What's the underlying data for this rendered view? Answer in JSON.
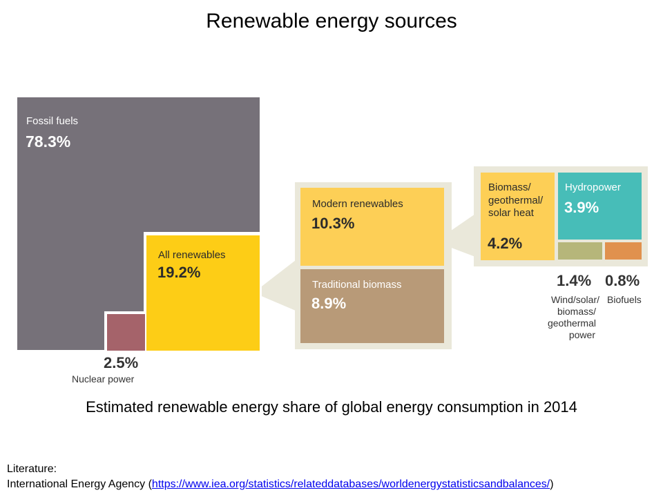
{
  "title": "Renewable energy sources",
  "caption": "Estimated renewable energy share of global energy consumption in 2014",
  "literature": {
    "label": "Literature:",
    "source": "International Energy Agency",
    "open": "(",
    "url": "https://www.iea.org/statistics/relateddatabases/worldenergystatisticsandbalances/",
    "close": ")"
  },
  "colors": {
    "fossil": "#767179",
    "nuclear": "#a5636a",
    "renewables": "#fdcd16",
    "modern": "#fdcf56",
    "traditional": "#b89a78",
    "panel": "#eae8da",
    "hydro": "#47bdb8",
    "wind": "#b6b67a",
    "biofuels": "#e0914e"
  },
  "chart_data": {
    "type": "treemap",
    "unit": "%",
    "items": [
      {
        "key": "fossil",
        "label": "Fossil fuels",
        "value": 78.3,
        "display": "78.3%"
      },
      {
        "key": "nuclear",
        "label": "Nuclear power",
        "value": 2.5,
        "display": "2.5%"
      },
      {
        "key": "renewables",
        "label": "All renewables",
        "value": 19.2,
        "display": "19.2%",
        "children": [
          {
            "key": "modern",
            "label": "Modern renewables",
            "value": 10.3,
            "display": "10.3%",
            "children": [
              {
                "key": "heat",
                "label": [
                  "Biomass/",
                  "geothermal/",
                  "solar heat"
                ],
                "value": 4.2,
                "display": "4.2%"
              },
              {
                "key": "hydro",
                "label": "Hydropower",
                "value": 3.9,
                "display": "3.9%"
              },
              {
                "key": "wind",
                "label": [
                  "Wind/solar/",
                  "biomass/",
                  "geothermal",
                  "power"
                ],
                "value": 1.4,
                "display": "1.4%"
              },
              {
                "key": "biofuels",
                "label": "Biofuels",
                "value": 0.8,
                "display": "0.8%"
              }
            ]
          },
          {
            "key": "traditional",
            "label": "Traditional biomass",
            "value": 8.9,
            "display": "8.9%"
          }
        ]
      }
    ]
  }
}
